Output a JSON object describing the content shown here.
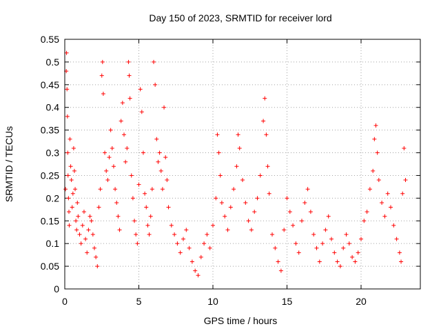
{
  "chart_data": {
    "type": "scatter",
    "title": "Day 150 of 2023, SRMTID for receiver lord",
    "xlabel": "GPS time / hours",
    "ylabel": "SRMTID / TECUs",
    "xlim": [
      0,
      24
    ],
    "ylim": [
      0,
      0.55
    ],
    "xticks": [
      0,
      5,
      10,
      15,
      20
    ],
    "yticks": [
      0,
      0.05,
      0.1,
      0.15,
      0.2,
      0.25,
      0.3,
      0.35,
      0.4,
      0.45,
      0.5,
      0.55
    ],
    "xtick_labels": [
      "0",
      "5",
      "10",
      "15",
      "20"
    ],
    "ytick_labels": [
      "0",
      "0.05",
      "0.1",
      "0.15",
      "0.2",
      "0.25",
      "0.3",
      "0.35",
      "0.4",
      "0.45",
      "0.5",
      "0.55"
    ],
    "grid": true,
    "marker": "+",
    "color": "#ff0000",
    "series": [
      {
        "name": "SRMTID",
        "points": [
          [
            0.05,
            0.22
          ],
          [
            0.1,
            0.48
          ],
          [
            0.12,
            0.52
          ],
          [
            0.15,
            0.44
          ],
          [
            0.18,
            0.38
          ],
          [
            0.2,
            0.3
          ],
          [
            0.22,
            0.25
          ],
          [
            0.25,
            0.2
          ],
          [
            0.28,
            0.17
          ],
          [
            0.3,
            0.14
          ],
          [
            0.35,
            0.33
          ],
          [
            0.4,
            0.27
          ],
          [
            0.45,
            0.24
          ],
          [
            0.5,
            0.18
          ],
          [
            0.55,
            0.21
          ],
          [
            0.6,
            0.31
          ],
          [
            0.65,
            0.26
          ],
          [
            0.7,
            0.22
          ],
          [
            0.75,
            0.15
          ],
          [
            0.8,
            0.13
          ],
          [
            0.85,
            0.19
          ],
          [
            0.9,
            0.16
          ],
          [
            1.0,
            0.12
          ],
          [
            1.1,
            0.1
          ],
          [
            1.2,
            0.14
          ],
          [
            1.3,
            0.17
          ],
          [
            1.4,
            0.11
          ],
          [
            1.5,
            0.08
          ],
          [
            1.6,
            0.13
          ],
          [
            1.7,
            0.16
          ],
          [
            1.8,
            0.15
          ],
          [
            1.9,
            0.12
          ],
          [
            2.0,
            0.09
          ],
          [
            2.1,
            0.07
          ],
          [
            2.2,
            0.05
          ],
          [
            2.3,
            0.18
          ],
          [
            2.4,
            0.22
          ],
          [
            2.5,
            0.47
          ],
          [
            2.55,
            0.5
          ],
          [
            2.6,
            0.43
          ],
          [
            2.7,
            0.3
          ],
          [
            2.8,
            0.26
          ],
          [
            2.9,
            0.24
          ],
          [
            3.0,
            0.29
          ],
          [
            3.1,
            0.35
          ],
          [
            3.2,
            0.31
          ],
          [
            3.3,
            0.27
          ],
          [
            3.4,
            0.22
          ],
          [
            3.5,
            0.19
          ],
          [
            3.6,
            0.16
          ],
          [
            3.7,
            0.13
          ],
          [
            3.8,
            0.37
          ],
          [
            3.9,
            0.41
          ],
          [
            4.0,
            0.34
          ],
          [
            4.1,
            0.28
          ],
          [
            4.2,
            0.31
          ],
          [
            4.3,
            0.5
          ],
          [
            4.35,
            0.47
          ],
          [
            4.4,
            0.42
          ],
          [
            4.5,
            0.25
          ],
          [
            4.6,
            0.2
          ],
          [
            4.7,
            0.15
          ],
          [
            4.8,
            0.12
          ],
          [
            4.9,
            0.1
          ],
          [
            5.0,
            0.23
          ],
          [
            5.1,
            0.44
          ],
          [
            5.2,
            0.39
          ],
          [
            5.3,
            0.3
          ],
          [
            5.4,
            0.21
          ],
          [
            5.5,
            0.18
          ],
          [
            5.6,
            0.14
          ],
          [
            5.7,
            0.12
          ],
          [
            5.8,
            0.16
          ],
          [
            5.9,
            0.22
          ],
          [
            6.0,
            0.5
          ],
          [
            6.1,
            0.45
          ],
          [
            6.2,
            0.33
          ],
          [
            6.3,
            0.28
          ],
          [
            6.4,
            0.3
          ],
          [
            6.5,
            0.26
          ],
          [
            6.6,
            0.22
          ],
          [
            6.7,
            0.4
          ],
          [
            6.8,
            0.29
          ],
          [
            6.9,
            0.24
          ],
          [
            7.0,
            0.18
          ],
          [
            7.2,
            0.14
          ],
          [
            7.4,
            0.12
          ],
          [
            7.6,
            0.1
          ],
          [
            7.8,
            0.08
          ],
          [
            8.0,
            0.11
          ],
          [
            8.2,
            0.13
          ],
          [
            8.4,
            0.09
          ],
          [
            8.6,
            0.06
          ],
          [
            8.8,
            0.04
          ],
          [
            9.0,
            0.03
          ],
          [
            9.2,
            0.07
          ],
          [
            9.4,
            0.1
          ],
          [
            9.6,
            0.12
          ],
          [
            9.8,
            0.09
          ],
          [
            10.0,
            0.14
          ],
          [
            10.2,
            0.2
          ],
          [
            10.3,
            0.34
          ],
          [
            10.4,
            0.3
          ],
          [
            10.5,
            0.25
          ],
          [
            10.6,
            0.19
          ],
          [
            10.8,
            0.16
          ],
          [
            11.0,
            0.13
          ],
          [
            11.2,
            0.18
          ],
          [
            11.4,
            0.22
          ],
          [
            11.6,
            0.27
          ],
          [
            11.7,
            0.34
          ],
          [
            11.8,
            0.31
          ],
          [
            12.0,
            0.24
          ],
          [
            12.2,
            0.19
          ],
          [
            12.4,
            0.15
          ],
          [
            12.6,
            0.13
          ],
          [
            12.8,
            0.17
          ],
          [
            13.0,
            0.2
          ],
          [
            13.2,
            0.25
          ],
          [
            13.4,
            0.37
          ],
          [
            13.5,
            0.42
          ],
          [
            13.6,
            0.34
          ],
          [
            13.7,
            0.27
          ],
          [
            13.8,
            0.21
          ],
          [
            14.0,
            0.12
          ],
          [
            14.2,
            0.09
          ],
          [
            14.4,
            0.06
          ],
          [
            14.6,
            0.04
          ],
          [
            14.8,
            0.13
          ],
          [
            15.0,
            0.2
          ],
          [
            15.2,
            0.17
          ],
          [
            15.4,
            0.14
          ],
          [
            15.6,
            0.1
          ],
          [
            15.8,
            0.08
          ],
          [
            16.0,
            0.15
          ],
          [
            16.2,
            0.19
          ],
          [
            16.4,
            0.22
          ],
          [
            16.6,
            0.17
          ],
          [
            16.8,
            0.12
          ],
          [
            17.0,
            0.09
          ],
          [
            17.2,
            0.06
          ],
          [
            17.4,
            0.1
          ],
          [
            17.6,
            0.13
          ],
          [
            17.8,
            0.16
          ],
          [
            18.0,
            0.11
          ],
          [
            18.2,
            0.08
          ],
          [
            18.4,
            0.06
          ],
          [
            18.6,
            0.05
          ],
          [
            18.8,
            0.09
          ],
          [
            19.0,
            0.12
          ],
          [
            19.2,
            0.1
          ],
          [
            19.4,
            0.07
          ],
          [
            19.6,
            0.06
          ],
          [
            19.8,
            0.08
          ],
          [
            20.0,
            0.11
          ],
          [
            20.2,
            0.15
          ],
          [
            20.4,
            0.17
          ],
          [
            20.6,
            0.22
          ],
          [
            20.8,
            0.26
          ],
          [
            20.9,
            0.33
          ],
          [
            21.0,
            0.36
          ],
          [
            21.1,
            0.3
          ],
          [
            21.2,
            0.24
          ],
          [
            21.4,
            0.19
          ],
          [
            21.6,
            0.16
          ],
          [
            21.8,
            0.21
          ],
          [
            22.0,
            0.18
          ],
          [
            22.2,
            0.14
          ],
          [
            22.4,
            0.11
          ],
          [
            22.6,
            0.08
          ],
          [
            22.7,
            0.06
          ],
          [
            22.8,
            0.21
          ],
          [
            22.9,
            0.31
          ],
          [
            23.0,
            0.24
          ]
        ]
      }
    ]
  }
}
